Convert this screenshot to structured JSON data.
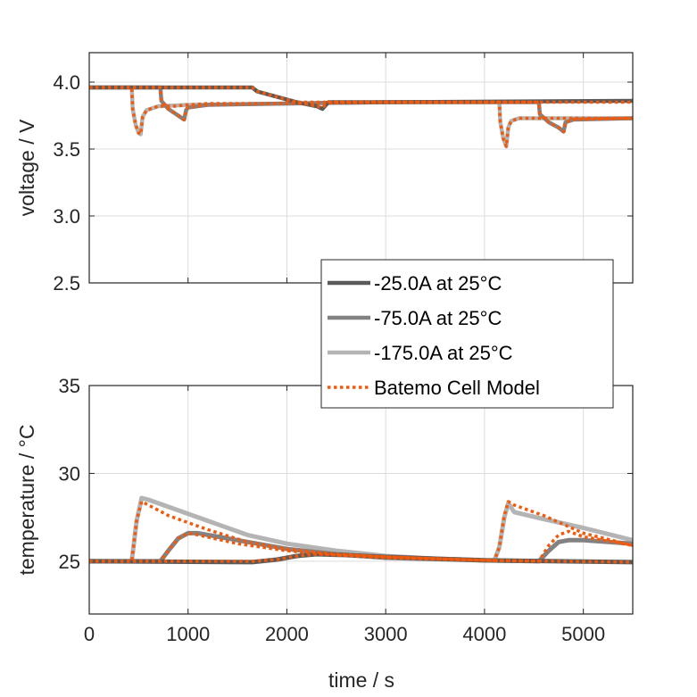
{
  "chart_data": [
    {
      "type": "line",
      "title": "",
      "xlabel": "",
      "ylabel": "voltage / V",
      "xlim": [
        0,
        5500
      ],
      "ylim": [
        2.5,
        4.22
      ],
      "xticks": [
        0,
        1000,
        2000,
        3000,
        4000,
        5000
      ],
      "xtick_labels": [],
      "yticks": [
        2.5,
        3.0,
        3.5,
        4.0
      ],
      "ytick_labels": [
        "2.5",
        "3.0",
        "3.5",
        "4.0"
      ],
      "grid": true,
      "series": [
        {
          "name": "-25.0A at 25°C",
          "x": [
            0,
            1650,
            1700,
            1900,
            2100,
            2300,
            2360,
            2420,
            3000,
            5500
          ],
          "y": [
            3.96,
            3.96,
            3.93,
            3.89,
            3.85,
            3.82,
            3.8,
            3.85,
            3.85,
            3.86
          ]
        },
        {
          "name": "-75.0A at 25°C",
          "x": [
            0,
            720,
            730,
            800,
            900,
            960,
            980,
            1000,
            1200,
            2000,
            3000,
            4550,
            4560,
            4650,
            4750,
            4800,
            4820,
            4900,
            5500
          ],
          "y": [
            3.96,
            3.96,
            3.86,
            3.8,
            3.75,
            3.72,
            3.79,
            3.81,
            3.83,
            3.84,
            3.85,
            3.85,
            3.76,
            3.7,
            3.66,
            3.63,
            3.7,
            3.72,
            3.73
          ]
        },
        {
          "name": "-175.0A at 25°C",
          "x": [
            0,
            430,
            440,
            470,
            500,
            520,
            540,
            580,
            700,
            1000,
            2000,
            3000,
            4150,
            4160,
            4190,
            4220,
            4240,
            4270,
            4350,
            4600,
            5500
          ],
          "y": [
            3.96,
            3.96,
            3.8,
            3.68,
            3.62,
            3.61,
            3.74,
            3.79,
            3.82,
            3.83,
            3.84,
            3.85,
            3.85,
            3.7,
            3.58,
            3.52,
            3.66,
            3.71,
            3.73,
            3.73,
            3.73
          ]
        },
        {
          "name": "Batemo Cell Model",
          "model": true,
          "x": [
            0,
            430,
            440,
            470,
            500,
            520,
            540,
            580,
            700,
            720,
            730,
            800,
            900,
            960,
            980,
            1000,
            1200,
            1650,
            1700,
            1900,
            2100,
            2300,
            2360,
            2420,
            3000,
            4150,
            4160,
            4190,
            4220,
            4240,
            4270,
            4350,
            4550,
            4560,
            4650,
            4750,
            4800,
            4820,
            4900,
            5500
          ],
          "y": [
            3.96,
            3.96,
            3.8,
            3.68,
            3.62,
            3.61,
            3.74,
            3.79,
            3.82,
            3.82,
            3.82,
            3.82,
            3.82,
            3.83,
            3.83,
            3.83,
            3.84,
            3.84,
            3.84,
            3.84,
            3.85,
            3.85,
            3.85,
            3.85,
            3.85,
            3.85,
            3.7,
            3.58,
            3.52,
            3.66,
            3.71,
            3.73,
            3.73,
            3.73,
            3.73,
            3.73,
            3.73,
            3.73,
            3.73,
            3.73
          ]
        },
        {
          "name": "Batemo Cell Model",
          "model": true,
          "x": [
            0,
            720,
            730,
            800,
            900,
            960,
            980,
            1000,
            1200,
            2000,
            3000,
            4550,
            4560,
            4650,
            4750,
            4800,
            4820,
            4900,
            5500
          ],
          "y": [
            3.96,
            3.96,
            3.86,
            3.8,
            3.75,
            3.72,
            3.79,
            3.81,
            3.83,
            3.84,
            3.85,
            3.85,
            3.76,
            3.7,
            3.66,
            3.63,
            3.7,
            3.72,
            3.73
          ]
        },
        {
          "name": "Batemo Cell Model",
          "model": true,
          "x": [
            0,
            1650,
            1700,
            1900,
            2100,
            2300,
            2360,
            2420,
            3000,
            5500
          ],
          "y": [
            3.96,
            3.96,
            3.93,
            3.89,
            3.85,
            3.82,
            3.81,
            3.85,
            3.85,
            3.85
          ]
        }
      ]
    },
    {
      "type": "line",
      "title": "",
      "xlabel": "time / s",
      "ylabel": "temperature / °C",
      "xlim": [
        0,
        5500
      ],
      "ylim": [
        22,
        35
      ],
      "xticks": [
        0,
        1000,
        2000,
        3000,
        4000,
        5000
      ],
      "xtick_labels": [
        "0",
        "1000",
        "2000",
        "3000",
        "4000",
        "5000"
      ],
      "yticks": [
        25,
        30,
        35
      ],
      "ytick_labels": [
        "25",
        "30",
        "35"
      ],
      "grid": true,
      "series": [
        {
          "name": "-25.0A at 25°C",
          "x": [
            0,
            1650,
            1900,
            2100,
            2300,
            2600,
            3000,
            4000,
            5500
          ],
          "y": [
            25.0,
            24.95,
            25.1,
            25.3,
            25.4,
            25.35,
            25.25,
            25.05,
            24.95
          ]
        },
        {
          "name": "-75.0A at 25°C",
          "x": [
            0,
            720,
            800,
            900,
            1000,
            1100,
            1500,
            2000,
            2500,
            3000,
            4000,
            4550,
            4650,
            4750,
            4850,
            5000,
            5500
          ],
          "y": [
            25.0,
            25.0,
            25.6,
            26.3,
            26.6,
            26.6,
            26.2,
            25.7,
            25.4,
            25.2,
            25.05,
            25.0,
            25.6,
            26.1,
            26.2,
            26.2,
            26.0
          ]
        },
        {
          "name": "-175.0A at 25°C",
          "x": [
            0,
            430,
            480,
            530,
            600,
            800,
            1200,
            1600,
            2000,
            2500,
            3000,
            3500,
            4100,
            4150,
            4200,
            4240,
            4300,
            4600,
            5000,
            5500
          ],
          "y": [
            25.0,
            25.0,
            27.3,
            28.6,
            28.5,
            28.1,
            27.3,
            26.5,
            26.0,
            25.6,
            25.3,
            25.15,
            25.05,
            25.8,
            27.5,
            28.3,
            27.8,
            27.4,
            26.9,
            26.2
          ]
        },
        {
          "name": "Batemo Cell Model",
          "model": true,
          "x": [
            0,
            430,
            480,
            530,
            600,
            800,
            1200,
            1600,
            2000,
            2500,
            3000,
            3500,
            4100,
            4150,
            4200,
            4240,
            4300,
            4600,
            5000,
            5500
          ],
          "y": [
            25.0,
            25.0,
            27.3,
            28.4,
            28.2,
            27.6,
            26.8,
            26.1,
            25.7,
            25.4,
            25.25,
            25.15,
            25.05,
            25.8,
            27.6,
            28.4,
            28.2,
            27.6,
            26.6,
            25.9
          ]
        },
        {
          "name": "Batemo Cell Model",
          "model": true,
          "x": [
            0,
            720,
            800,
            900,
            1000,
            1100,
            1500,
            2000,
            2500,
            3000,
            4000,
            4550,
            4650,
            4750,
            4850,
            5000,
            5500
          ],
          "y": [
            25.0,
            25.0,
            25.6,
            26.3,
            26.6,
            26.5,
            26.0,
            25.6,
            25.35,
            25.2,
            25.05,
            25.0,
            25.9,
            26.5,
            26.7,
            26.4,
            25.9
          ]
        },
        {
          "name": "Batemo Cell Model",
          "model": true,
          "x": [
            0,
            1650,
            1900,
            2100,
            2300,
            2600,
            3000,
            4000,
            5500
          ],
          "y": [
            25.0,
            25.0,
            25.1,
            25.3,
            25.4,
            25.35,
            25.25,
            25.05,
            24.95
          ]
        }
      ]
    }
  ],
  "legend": {
    "placement": "center-right",
    "entries": [
      {
        "label": "-25.0A at 25°C",
        "color": "#5a5a5a",
        "style": "solid"
      },
      {
        "label": "-75.0A at 25°C",
        "color": "#828282",
        "style": "solid"
      },
      {
        "label": "-175.0A at 25°C",
        "color": "#b4b4b4",
        "style": "solid"
      },
      {
        "label": "Batemo Cell Model",
        "color": "#f05a0f",
        "style": "dotted"
      }
    ]
  },
  "colors": {
    "-25.0A at 25°C": "#5a5a5a",
    "-75.0A at 25°C": "#828282",
    "-175.0A at 25°C": "#b4b4b4",
    "Batemo Cell Model": "#f05a0f"
  }
}
